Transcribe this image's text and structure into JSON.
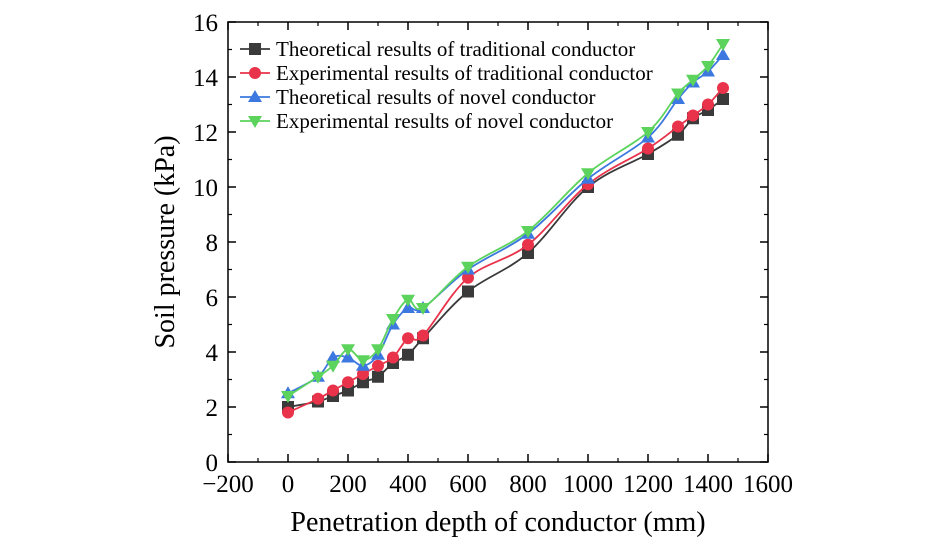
{
  "chart_data": {
    "type": "line",
    "xlabel": "Penetration depth of conductor (mm)",
    "ylabel": "Soil pressure (kPa)",
    "xlim": [
      -200,
      1600
    ],
    "ylim": [
      0,
      16
    ],
    "xticks": [
      -200,
      0,
      200,
      400,
      600,
      800,
      1000,
      1200,
      1400,
      1600
    ],
    "yticks": [
      0,
      2,
      4,
      6,
      8,
      10,
      12,
      14,
      16
    ],
    "grid": false,
    "legend_position": "top-left",
    "series": [
      {
        "name": "Theoretical results of traditional conductor",
        "marker": "square",
        "color": "#3a3a3a",
        "x": [
          0,
          100,
          150,
          200,
          250,
          300,
          350,
          400,
          450,
          600,
          800,
          1000,
          1200,
          1300,
          1350,
          1400,
          1450
        ],
        "y": [
          2.0,
          2.2,
          2.4,
          2.6,
          2.9,
          3.1,
          3.6,
          3.9,
          4.5,
          6.2,
          7.6,
          10.0,
          11.2,
          11.9,
          12.5,
          12.8,
          13.2
        ]
      },
      {
        "name": "Experimental results of traditional conductor",
        "marker": "circle",
        "color": "#e8334a",
        "x": [
          0,
          100,
          150,
          200,
          250,
          300,
          350,
          400,
          450,
          600,
          800,
          1000,
          1200,
          1300,
          1350,
          1400,
          1450
        ],
        "y": [
          1.8,
          2.3,
          2.6,
          2.9,
          3.2,
          3.5,
          3.8,
          4.5,
          4.6,
          6.7,
          7.9,
          10.1,
          11.4,
          12.2,
          12.6,
          13.0,
          13.6
        ]
      },
      {
        "name": "Theoretical results of novel conductor",
        "marker": "triangle-up",
        "color": "#3c78e0",
        "x": [
          0,
          100,
          150,
          200,
          250,
          300,
          350,
          400,
          450,
          600,
          800,
          1000,
          1200,
          1300,
          1350,
          1400,
          1450
        ],
        "y": [
          2.5,
          3.1,
          3.8,
          3.8,
          3.5,
          3.9,
          5.0,
          5.6,
          5.6,
          7.0,
          8.3,
          10.3,
          11.8,
          13.2,
          13.8,
          14.2,
          14.8
        ]
      },
      {
        "name": "Experimental results of novel conductor",
        "marker": "triangle-down",
        "color": "#5cd35c",
        "x": [
          0,
          100,
          150,
          200,
          250,
          300,
          350,
          400,
          450,
          600,
          800,
          1000,
          1200,
          1300,
          1350,
          1400,
          1450
        ],
        "y": [
          2.4,
          3.1,
          3.5,
          4.1,
          3.7,
          4.1,
          5.2,
          5.9,
          5.6,
          7.1,
          8.4,
          10.5,
          12.0,
          13.4,
          13.9,
          14.4,
          15.2
        ]
      }
    ]
  }
}
